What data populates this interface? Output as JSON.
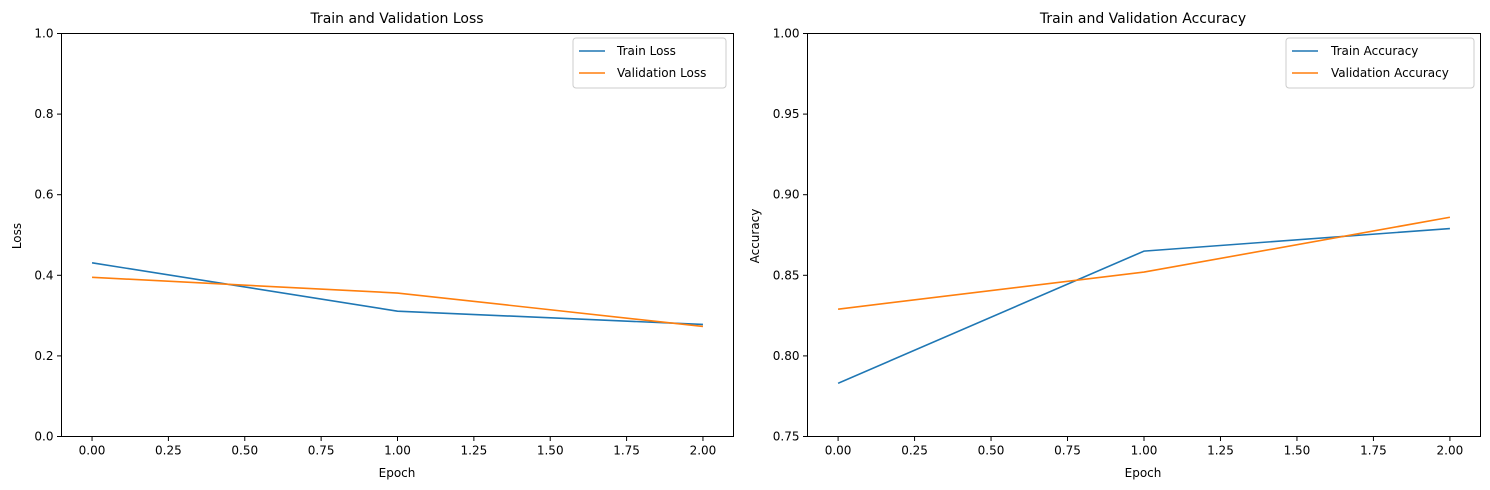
{
  "chart_data": [
    {
      "type": "line",
      "title": "Train and Validation Loss",
      "xlabel": "Epoch",
      "ylabel": "Loss",
      "xlim": [
        -0.1,
        2.1
      ],
      "ylim": [
        0,
        1.0
      ],
      "xticks": [
        "0.00",
        "0.25",
        "0.50",
        "0.75",
        "1.00",
        "1.25",
        "1.50",
        "1.75",
        "2.00"
      ],
      "yticks": [
        "0.0",
        "0.2",
        "0.4",
        "0.6",
        "0.8",
        "1.0"
      ],
      "x": [
        0,
        1,
        2
      ],
      "grid": false,
      "legend_position": "top-right",
      "series": [
        {
          "name": "Train Loss",
          "color": "#1f77b4",
          "values": [
            0.431,
            0.311,
            0.278
          ]
        },
        {
          "name": "Validation Loss",
          "color": "#ff7f0e",
          "values": [
            0.395,
            0.356,
            0.273
          ]
        }
      ]
    },
    {
      "type": "line",
      "title": "Train and Validation Accuracy",
      "xlabel": "Epoch",
      "ylabel": "Accuracy",
      "xlim": [
        -0.1,
        2.1
      ],
      "ylim": [
        0.75,
        1.0
      ],
      "xticks": [
        "0.00",
        "0.25",
        "0.50",
        "0.75",
        "1.00",
        "1.25",
        "1.50",
        "1.75",
        "2.00"
      ],
      "yticks": [
        "0.75",
        "0.80",
        "0.85",
        "0.90",
        "0.95",
        "1.00"
      ],
      "x": [
        0,
        1,
        2
      ],
      "grid": false,
      "legend_position": "top-right",
      "series": [
        {
          "name": "Train Accuracy",
          "color": "#1f77b4",
          "values": [
            0.783,
            0.865,
            0.879
          ]
        },
        {
          "name": "Validation Accuracy",
          "color": "#ff7f0e",
          "values": [
            0.829,
            0.852,
            0.886
          ]
        }
      ]
    }
  ]
}
